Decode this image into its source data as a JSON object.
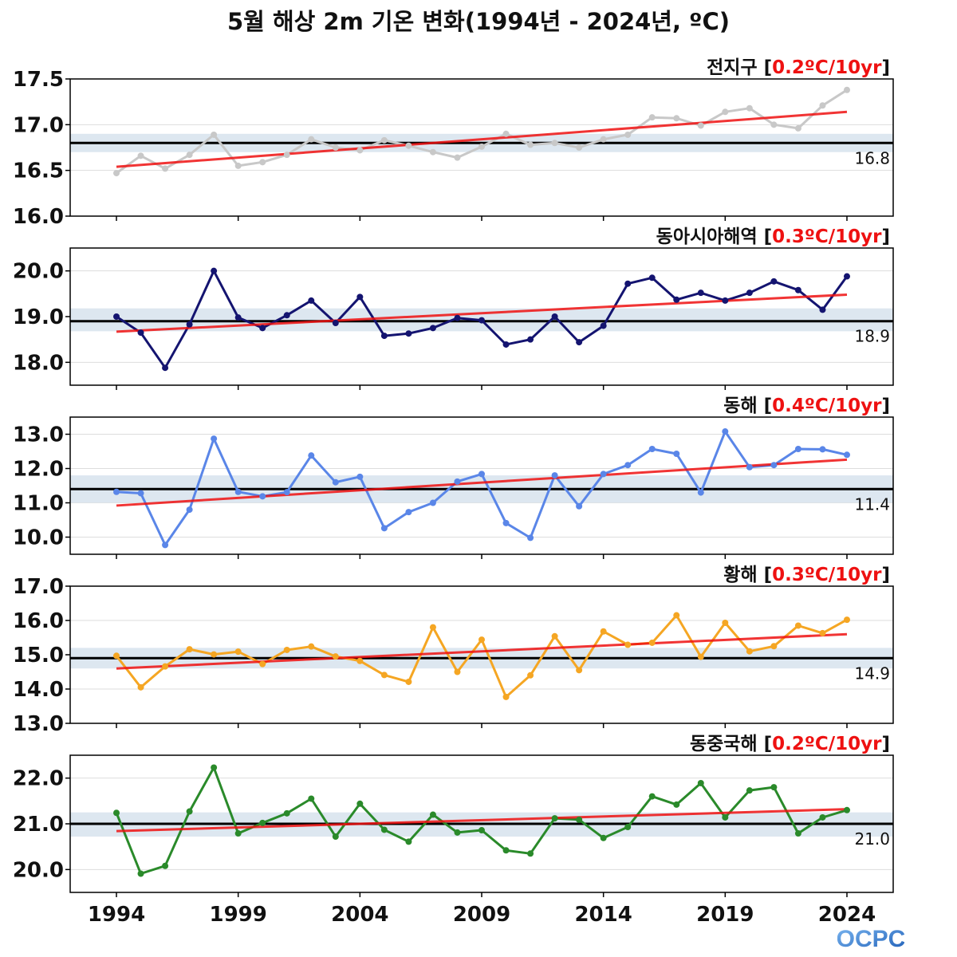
{
  "title": "5월 해상 2m 기온 변화(1994년 - 2024년, ºC)",
  "logo_text": "OCPC",
  "colors": {
    "trend": "#ee1111",
    "normal_line": "#000000",
    "normal_band": "#dde7f0",
    "grid": "#dddddd",
    "axis": "#000000",
    "rate_text": "#ee1111"
  },
  "chart_data": [
    {
      "type": "line",
      "region": "전지구",
      "rate_label": "0.2ºC/10yr",
      "color": "#c8c8c8",
      "x": [
        1994,
        1995,
        1996,
        1997,
        1998,
        1999,
        2000,
        2001,
        2002,
        2003,
        2004,
        2005,
        2006,
        2007,
        2008,
        2009,
        2010,
        2011,
        2012,
        2013,
        2014,
        2015,
        2016,
        2017,
        2018,
        2019,
        2020,
        2021,
        2022,
        2023,
        2024
      ],
      "values": [
        16.47,
        16.66,
        16.52,
        16.67,
        16.89,
        16.55,
        16.59,
        16.67,
        16.84,
        16.75,
        16.72,
        16.83,
        16.77,
        16.7,
        16.64,
        16.76,
        16.9,
        16.78,
        16.8,
        16.75,
        16.84,
        16.89,
        17.08,
        17.07,
        16.99,
        17.14,
        17.18,
        17.0,
        16.96,
        17.21,
        17.38
      ],
      "trend": [
        16.54,
        17.14
      ],
      "normal": 16.8,
      "normal_label": "16.8",
      "band": [
        16.7,
        16.9
      ],
      "ylim": [
        16.0,
        17.5
      ],
      "yticks": [
        "16.0",
        "16.5",
        "17.0",
        "17.5"
      ]
    },
    {
      "type": "line",
      "region": "동아시아해역",
      "rate_label": "0.3ºC/10yr",
      "color": "#141470",
      "x": [
        1994,
        1995,
        1996,
        1997,
        1998,
        1999,
        2000,
        2001,
        2002,
        2003,
        2004,
        2005,
        2006,
        2007,
        2008,
        2009,
        2010,
        2011,
        2012,
        2013,
        2014,
        2015,
        2016,
        2017,
        2018,
        2019,
        2020,
        2021,
        2022,
        2023,
        2024
      ],
      "values": [
        19.0,
        18.65,
        17.88,
        18.83,
        20.0,
        18.98,
        18.75,
        19.03,
        19.35,
        18.86,
        19.43,
        18.58,
        18.63,
        18.75,
        18.97,
        18.92,
        18.39,
        18.5,
        19.0,
        18.44,
        18.8,
        19.72,
        19.85,
        19.37,
        19.52,
        19.35,
        19.52,
        19.77,
        19.58,
        19.15,
        19.88
      ],
      "trend": [
        18.67,
        19.48
      ],
      "normal": 18.9,
      "normal_label": "18.9",
      "band": [
        18.68,
        19.18
      ],
      "ylim": [
        17.5,
        20.5
      ],
      "yticks": [
        "18.0",
        "19.0",
        "20.0"
      ]
    },
    {
      "type": "line",
      "region": "동해",
      "rate_label": "0.4ºC/10yr",
      "color": "#5a86e8",
      "x": [
        1994,
        1995,
        1996,
        1997,
        1998,
        1999,
        2000,
        2001,
        2002,
        2003,
        2004,
        2005,
        2006,
        2007,
        2008,
        2009,
        2010,
        2011,
        2012,
        2013,
        2014,
        2015,
        2016,
        2017,
        2018,
        2019,
        2020,
        2021,
        2022,
        2023,
        2024
      ],
      "values": [
        11.32,
        11.28,
        9.77,
        10.8,
        12.87,
        11.32,
        11.19,
        11.31,
        12.38,
        11.6,
        11.76,
        10.26,
        10.73,
        11.0,
        11.62,
        11.84,
        10.41,
        9.98,
        11.8,
        10.9,
        11.84,
        12.1,
        12.57,
        12.43,
        11.3,
        13.08,
        12.04,
        12.1,
        12.57,
        12.56,
        12.4
      ],
      "trend": [
        10.92,
        12.26
      ],
      "normal": 11.4,
      "normal_label": "11.4",
      "band": [
        11.0,
        11.8
      ],
      "ylim": [
        9.5,
        13.5
      ],
      "yticks": [
        "10.0",
        "11.0",
        "12.0",
        "13.0"
      ]
    },
    {
      "type": "line",
      "region": "황해",
      "rate_label": "0.3ºC/10yr",
      "color": "#f5a623",
      "x": [
        1994,
        1995,
        1996,
        1997,
        1998,
        1999,
        2000,
        2001,
        2002,
        2003,
        2004,
        2005,
        2006,
        2007,
        2008,
        2009,
        2010,
        2011,
        2012,
        2013,
        2014,
        2015,
        2016,
        2017,
        2018,
        2019,
        2020,
        2021,
        2022,
        2023,
        2024
      ],
      "values": [
        14.97,
        14.05,
        14.66,
        15.16,
        15.01,
        15.09,
        14.73,
        15.14,
        15.24,
        14.95,
        14.82,
        14.41,
        14.21,
        15.8,
        14.5,
        15.44,
        13.77,
        14.4,
        15.54,
        14.55,
        15.68,
        15.29,
        15.35,
        16.15,
        14.94,
        15.93,
        15.1,
        15.25,
        15.85,
        15.63,
        16.02
      ],
      "trend": [
        14.6,
        15.6
      ],
      "normal": 14.9,
      "normal_label": "14.9",
      "band": [
        14.6,
        15.2
      ],
      "ylim": [
        13.0,
        17.0
      ],
      "yticks": [
        "13.0",
        "14.0",
        "15.0",
        "16.0",
        "17.0"
      ]
    },
    {
      "type": "line",
      "region": "동중국해",
      "rate_label": "0.2ºC/10yr",
      "color": "#2a8a2a",
      "x": [
        1994,
        1995,
        1996,
        1997,
        1998,
        1999,
        2000,
        2001,
        2002,
        2003,
        2004,
        2005,
        2006,
        2007,
        2008,
        2009,
        2010,
        2011,
        2012,
        2013,
        2014,
        2015,
        2016,
        2017,
        2018,
        2019,
        2020,
        2021,
        2022,
        2023,
        2024
      ],
      "values": [
        21.24,
        19.91,
        20.08,
        21.27,
        22.23,
        20.79,
        21.02,
        21.23,
        21.55,
        20.72,
        21.44,
        20.87,
        20.61,
        21.2,
        20.81,
        20.86,
        20.42,
        20.35,
        21.12,
        21.09,
        20.69,
        20.93,
        21.6,
        21.42,
        21.89,
        21.14,
        21.73,
        21.8,
        20.79,
        21.14,
        21.3
      ],
      "trend": [
        20.84,
        21.32
      ],
      "normal": 21.0,
      "normal_label": "21.0",
      "band": [
        20.72,
        21.25
      ],
      "ylim": [
        19.5,
        22.5
      ],
      "yticks": [
        "20.0",
        "21.0",
        "22.0"
      ]
    }
  ],
  "x_axis": {
    "xlim": [
      1992.1,
      2025.9
    ],
    "tick_years": [
      1994,
      1999,
      2004,
      2009,
      2014,
      2019,
      2024
    ],
    "tick_labels": [
      "1994",
      "1999",
      "2004",
      "2009",
      "2014",
      "2019",
      "2024"
    ]
  }
}
